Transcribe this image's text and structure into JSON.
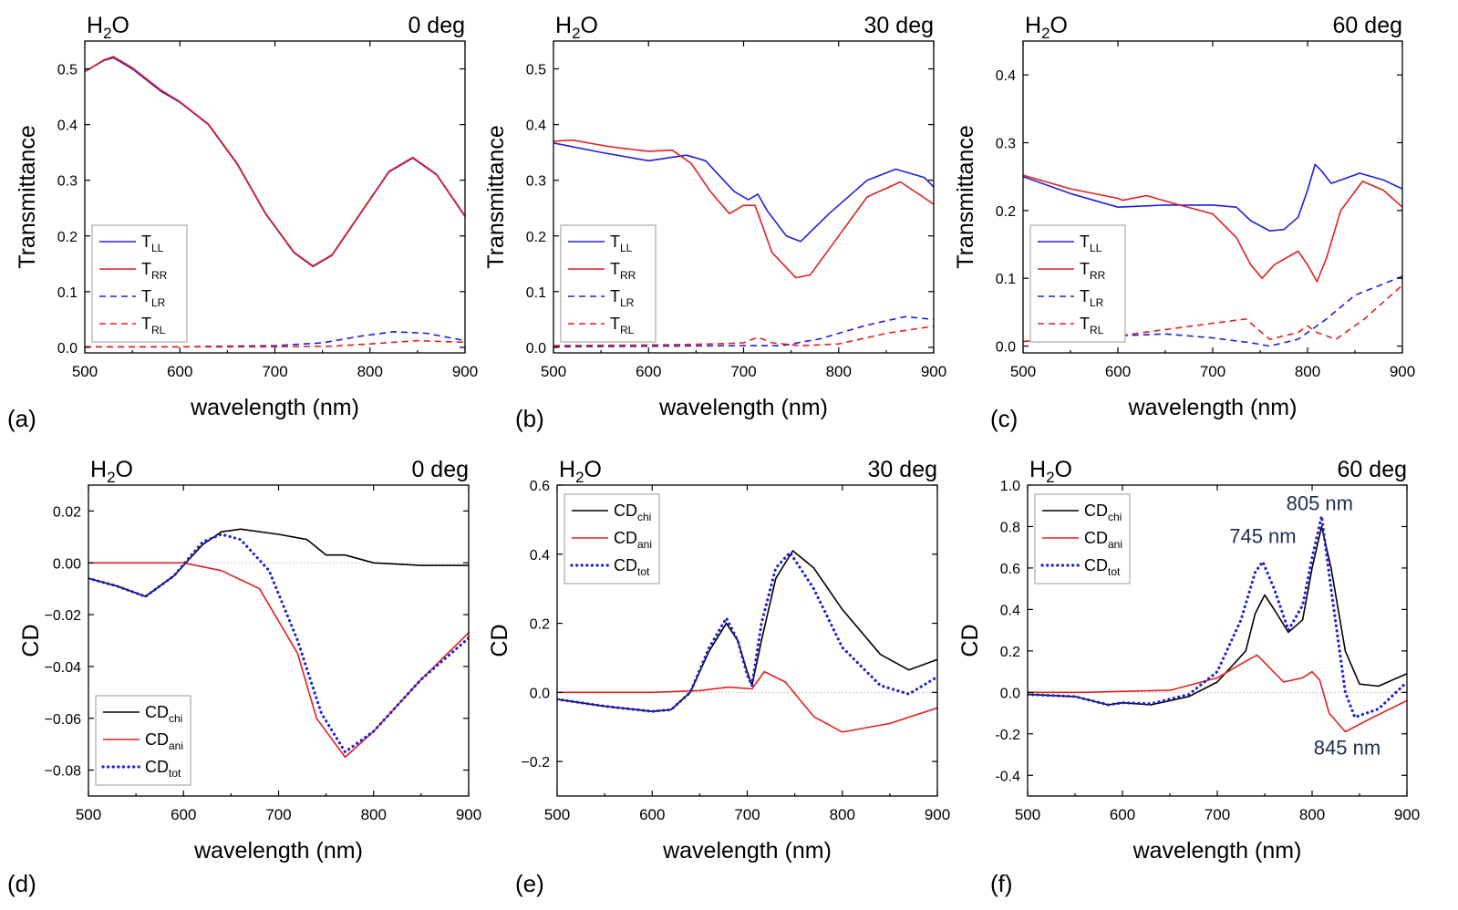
{
  "chart_data": [
    {
      "type": "line",
      "panel": "(a)",
      "title_left": "H2O",
      "title_right": "0 deg",
      "xlabel": "wavelength (nm)",
      "ylabel": "Transmittance",
      "xlim": [
        500,
        900
      ],
      "ylim": [
        -0.01,
        0.55
      ],
      "xticks": [
        500,
        600,
        700,
        800,
        900
      ],
      "yticks": [
        0.0,
        0.1,
        0.2,
        0.3,
        0.4,
        0.5
      ],
      "ytick_labels": [
        "0.0",
        "0.1",
        "0.2",
        "0.3",
        "0.4",
        "0.5"
      ],
      "legend_pos": "bottom-left",
      "series": [
        {
          "name": "LL",
          "label_main": "T",
          "label_sub": "LL",
          "color": "#1f1fd6",
          "dash": "solid",
          "x": [
            500,
            520,
            530,
            550,
            580,
            600,
            630,
            660,
            690,
            720,
            740,
            760,
            790,
            820,
            845,
            870,
            900
          ],
          "y": [
            0.495,
            0.515,
            0.52,
            0.5,
            0.46,
            0.44,
            0.4,
            0.33,
            0.24,
            0.17,
            0.145,
            0.165,
            0.24,
            0.315,
            0.34,
            0.31,
            0.235
          ]
        },
        {
          "name": "RR",
          "label_main": "T",
          "label_sub": "RR",
          "color": "#e02020",
          "dash": "solid",
          "x": [
            500,
            520,
            530,
            550,
            580,
            600,
            630,
            660,
            690,
            720,
            740,
            760,
            790,
            820,
            845,
            870,
            900
          ],
          "y": [
            0.495,
            0.516,
            0.522,
            0.502,
            0.462,
            0.441,
            0.401,
            0.331,
            0.241,
            0.171,
            0.146,
            0.166,
            0.241,
            0.316,
            0.341,
            0.311,
            0.236
          ]
        },
        {
          "name": "LR",
          "label_main": "T",
          "label_sub": "LR",
          "color": "#1f1fd6",
          "dash": "dashed",
          "x": [
            500,
            600,
            700,
            750,
            790,
            825,
            860,
            900
          ],
          "y": [
            0.001,
            0.001,
            0.003,
            0.008,
            0.02,
            0.028,
            0.025,
            0.012
          ]
        },
        {
          "name": "RL",
          "label_main": "T",
          "label_sub": "RL",
          "color": "#e02020",
          "dash": "dashed",
          "x": [
            500,
            600,
            700,
            760,
            800,
            850,
            900
          ],
          "y": [
            0.001,
            0.001,
            0.001,
            0.002,
            0.006,
            0.012,
            0.009
          ]
        }
      ]
    },
    {
      "type": "line",
      "panel": "(b)",
      "title_left": "H2O",
      "title_right": "30 deg",
      "xlabel": "wavelength (nm)",
      "ylabel": "Transmittance",
      "xlim": [
        500,
        900
      ],
      "ylim": [
        -0.01,
        0.55
      ],
      "xticks": [
        500,
        600,
        700,
        800,
        900
      ],
      "yticks": [
        0.0,
        0.1,
        0.2,
        0.3,
        0.4,
        0.5
      ],
      "ytick_labels": [
        "0.0",
        "0.1",
        "0.2",
        "0.3",
        "0.4",
        "0.5"
      ],
      "legend_pos": "bottom-left",
      "series": [
        {
          "name": "LL",
          "label_main": "T",
          "label_sub": "LL",
          "color": "#1f1fd6",
          "dash": "solid",
          "x": [
            500,
            550,
            600,
            640,
            660,
            690,
            705,
            715,
            725,
            745,
            760,
            790,
            830,
            860,
            890,
            900
          ],
          "y": [
            0.367,
            0.35,
            0.335,
            0.345,
            0.335,
            0.28,
            0.265,
            0.275,
            0.245,
            0.2,
            0.19,
            0.24,
            0.3,
            0.32,
            0.305,
            0.288
          ]
        },
        {
          "name": "RR",
          "label_main": "T",
          "label_sub": "RR",
          "color": "#e02020",
          "dash": "solid",
          "x": [
            500,
            520,
            560,
            600,
            625,
            645,
            665,
            685,
            700,
            712,
            730,
            755,
            770,
            800,
            830,
            865,
            900
          ],
          "y": [
            0.37,
            0.372,
            0.36,
            0.352,
            0.354,
            0.33,
            0.28,
            0.24,
            0.255,
            0.255,
            0.17,
            0.125,
            0.13,
            0.2,
            0.27,
            0.297,
            0.257
          ]
        },
        {
          "name": "LR",
          "label_main": "T",
          "label_sub": "LR",
          "color": "#1f1fd6",
          "dash": "dashed",
          "x": [
            500,
            600,
            700,
            740,
            780,
            830,
            870,
            900
          ],
          "y": [
            0.001,
            0.002,
            0.003,
            0.003,
            0.015,
            0.04,
            0.055,
            0.05
          ]
        },
        {
          "name": "RL",
          "label_main": "T",
          "label_sub": "RL",
          "color": "#e02020",
          "dash": "dashed",
          "x": [
            500,
            600,
            670,
            700,
            715,
            730,
            760,
            800,
            850,
            900
          ],
          "y": [
            0.003,
            0.004,
            0.006,
            0.008,
            0.018,
            0.008,
            0.003,
            0.006,
            0.025,
            0.038
          ]
        }
      ]
    },
    {
      "type": "line",
      "panel": "(c)",
      "title_left": "H2O",
      "title_right": "60 deg",
      "xlabel": "wavelength (nm)",
      "ylabel": "Transmittance",
      "xlim": [
        500,
        900
      ],
      "ylim": [
        -0.01,
        0.45
      ],
      "xticks": [
        500,
        600,
        700,
        800,
        900
      ],
      "yticks": [
        0.0,
        0.1,
        0.2,
        0.3,
        0.4
      ],
      "ytick_labels": [
        "0.0",
        "0.1",
        "0.2",
        "0.3",
        "0.4"
      ],
      "legend_pos": "bottom-left",
      "series": [
        {
          "name": "LL",
          "label_main": "T",
          "label_sub": "LL",
          "color": "#1f1fd6",
          "dash": "solid",
          "x": [
            500,
            550,
            600,
            650,
            700,
            725,
            740,
            760,
            775,
            790,
            800,
            808,
            815,
            825,
            855,
            880,
            900
          ],
          "y": [
            0.25,
            0.225,
            0.205,
            0.208,
            0.208,
            0.205,
            0.185,
            0.17,
            0.172,
            0.19,
            0.23,
            0.268,
            0.258,
            0.24,
            0.255,
            0.245,
            0.232
          ]
        },
        {
          "name": "RR",
          "label_main": "T",
          "label_sub": "RR",
          "color": "#e02020",
          "dash": "solid",
          "x": [
            500,
            550,
            600,
            605,
            630,
            660,
            700,
            725,
            740,
            752,
            765,
            790,
            800,
            810,
            820,
            835,
            858,
            880,
            900
          ],
          "y": [
            0.252,
            0.232,
            0.218,
            0.215,
            0.222,
            0.21,
            0.195,
            0.16,
            0.12,
            0.1,
            0.12,
            0.14,
            0.12,
            0.095,
            0.13,
            0.2,
            0.243,
            0.23,
            0.205
          ]
        },
        {
          "name": "LR",
          "label_main": "T",
          "label_sub": "LR",
          "color": "#1f1fd6",
          "dash": "dashed",
          "x": [
            500,
            600,
            650,
            700,
            740,
            760,
            790,
            820,
            850,
            900
          ],
          "y": [
            0.007,
            0.015,
            0.018,
            0.012,
            0.005,
            0.0,
            0.01,
            0.04,
            0.075,
            0.103
          ]
        },
        {
          "name": "RL",
          "label_main": "T",
          "label_sub": "RL",
          "color": "#e02020",
          "dash": "dashed",
          "x": [
            500,
            600,
            680,
            735,
            760,
            790,
            800,
            810,
            830,
            860,
            900
          ],
          "y": [
            0.007,
            0.015,
            0.03,
            0.04,
            0.01,
            0.02,
            0.03,
            0.02,
            0.01,
            0.04,
            0.09
          ]
        }
      ]
    },
    {
      "type": "line",
      "panel": "(d)",
      "title_left": "H2O",
      "title_right": "0 deg",
      "xlabel": "wavelength (nm)",
      "ylabel": "CD",
      "xlim": [
        500,
        900
      ],
      "ylim": [
        -0.09,
        0.03
      ],
      "xticks": [
        500,
        600,
        700,
        800,
        900
      ],
      "yticks": [
        0.02,
        0.0,
        -0.02,
        -0.04,
        -0.06,
        -0.08
      ],
      "ytick_labels": [
        "0.02",
        "0.00",
        "−0.02",
        "−0.04",
        "−0.06",
        "−0.08"
      ],
      "legend_pos": "bottom-left",
      "zero_line": true,
      "series": [
        {
          "name": "chi",
          "label_main": "CD",
          "label_sub": "chi",
          "color": "#000000",
          "dash": "solid",
          "x": [
            500,
            530,
            560,
            590,
            620,
            640,
            660,
            700,
            730,
            750,
            770,
            800,
            850,
            900
          ],
          "y": [
            -0.006,
            -0.009,
            -0.013,
            -0.005,
            0.007,
            0.012,
            0.013,
            0.011,
            0.009,
            0.003,
            0.003,
            0.0,
            -0.001,
            -0.001
          ]
        },
        {
          "name": "ani",
          "label_main": "CD",
          "label_sub": "ani",
          "color": "#e02020",
          "dash": "solid",
          "x": [
            500,
            560,
            600,
            640,
            680,
            720,
            740,
            770,
            800,
            850,
            900
          ],
          "y": [
            0.0,
            0.0,
            0.0,
            -0.003,
            -0.01,
            -0.035,
            -0.06,
            -0.075,
            -0.065,
            -0.045,
            -0.027
          ]
        },
        {
          "name": "tot",
          "label_main": "CD",
          "label_sub": "tot",
          "color": "#1f1fd6",
          "dash": "dotted",
          "x": [
            500,
            530,
            560,
            590,
            620,
            640,
            660,
            690,
            720,
            745,
            770,
            800,
            850,
            900
          ],
          "y": [
            -0.006,
            -0.009,
            -0.013,
            -0.005,
            0.008,
            0.011,
            0.009,
            -0.003,
            -0.03,
            -0.058,
            -0.073,
            -0.065,
            -0.045,
            -0.029
          ]
        }
      ]
    },
    {
      "type": "line",
      "panel": "(e)",
      "title_left": "H2O",
      "title_right": "30 deg",
      "xlabel": "wavelength (nm)",
      "ylabel": "CD",
      "xlim": [
        500,
        900
      ],
      "ylim": [
        -0.3,
        0.6
      ],
      "xticks": [
        500,
        600,
        700,
        800,
        900
      ],
      "yticks": [
        -0.2,
        0.0,
        0.2,
        0.4,
        0.6
      ],
      "ytick_labels": [
        "−0.2",
        "0.0",
        "0.2",
        "0.4",
        "0.6"
      ],
      "legend_pos": "top-left",
      "zero_line": true,
      "series": [
        {
          "name": "chi",
          "label_main": "CD",
          "label_sub": "chi",
          "color": "#000000",
          "dash": "solid",
          "x": [
            500,
            550,
            600,
            620,
            640,
            660,
            678,
            690,
            700,
            705,
            715,
            730,
            748,
            770,
            800,
            840,
            870,
            900
          ],
          "y": [
            -0.02,
            -0.04,
            -0.055,
            -0.05,
            0.0,
            0.12,
            0.2,
            0.15,
            0.06,
            0.02,
            0.15,
            0.33,
            0.41,
            0.36,
            0.24,
            0.11,
            0.065,
            0.095
          ]
        },
        {
          "name": "ani",
          "label_main": "CD",
          "label_sub": "ani",
          "color": "#e02020",
          "dash": "solid",
          "x": [
            500,
            600,
            650,
            680,
            705,
            718,
            740,
            770,
            800,
            850,
            900
          ],
          "y": [
            0.0,
            0.0,
            0.005,
            0.015,
            0.01,
            0.06,
            0.03,
            -0.07,
            -0.115,
            -0.09,
            -0.045
          ]
        },
        {
          "name": "tot",
          "label_main": "CD",
          "label_sub": "tot",
          "color": "#1f1fd6",
          "dash": "dotted",
          "x": [
            500,
            550,
            600,
            620,
            640,
            660,
            678,
            690,
            700,
            705,
            715,
            730,
            745,
            770,
            800,
            840,
            870,
            900
          ],
          "y": [
            -0.02,
            -0.04,
            -0.055,
            -0.05,
            0.0,
            0.13,
            0.215,
            0.15,
            0.05,
            0.02,
            0.2,
            0.36,
            0.405,
            0.3,
            0.13,
            0.02,
            -0.005,
            0.045
          ]
        }
      ]
    },
    {
      "type": "line",
      "panel": "(f)",
      "title_left": "H2O",
      "title_right": "60 deg",
      "xlabel": "wavelength (nm)",
      "ylabel": "CD",
      "xlim": [
        500,
        900
      ],
      "ylim": [
        -0.5,
        1.0
      ],
      "xticks": [
        500,
        600,
        700,
        800,
        900
      ],
      "yticks": [
        -0.4,
        -0.2,
        0.0,
        0.2,
        0.4,
        0.6,
        0.8,
        1.0
      ],
      "ytick_labels": [
        "-0.4",
        "-0.2",
        "0.0",
        "0.2",
        "0.4",
        "0.6",
        "0.8",
        "1.0"
      ],
      "legend_pos": "top-left",
      "zero_line": true,
      "annotations": [
        {
          "text": "745 nm",
          "x": 748,
          "y": 0.72
        },
        {
          "text": "805 nm",
          "x": 808,
          "y": 0.88
        },
        {
          "text": "845 nm",
          "x": 837,
          "y": -0.3
        }
      ],
      "series": [
        {
          "name": "chi",
          "label_main": "CD",
          "label_sub": "chi",
          "color": "#000000",
          "dash": "solid",
          "x": [
            500,
            550,
            585,
            600,
            630,
            670,
            700,
            730,
            740,
            750,
            760,
            775,
            790,
            800,
            810,
            820,
            835,
            850,
            870,
            900
          ],
          "y": [
            -0.01,
            -0.02,
            -0.06,
            -0.05,
            -0.06,
            -0.02,
            0.05,
            0.2,
            0.38,
            0.47,
            0.4,
            0.29,
            0.35,
            0.6,
            0.8,
            0.6,
            0.2,
            0.04,
            0.03,
            0.09
          ]
        },
        {
          "name": "ani",
          "label_main": "CD",
          "label_sub": "ani",
          "color": "#e02020",
          "dash": "solid",
          "x": [
            500,
            560,
            600,
            650,
            700,
            730,
            742,
            755,
            770,
            790,
            800,
            808,
            818,
            835,
            860,
            900
          ],
          "y": [
            0.0,
            0.0,
            0.005,
            0.01,
            0.07,
            0.15,
            0.18,
            0.12,
            0.05,
            0.07,
            0.1,
            0.06,
            -0.1,
            -0.19,
            -0.13,
            -0.04
          ]
        },
        {
          "name": "tot",
          "label_main": "CD",
          "label_sub": "tot",
          "color": "#1f1fd6",
          "dash": "dotted",
          "x": [
            500,
            550,
            585,
            600,
            630,
            670,
            700,
            725,
            740,
            748,
            760,
            775,
            790,
            800,
            810,
            820,
            835,
            845,
            870,
            900
          ],
          "y": [
            -0.01,
            -0.02,
            -0.06,
            -0.05,
            -0.055,
            -0.01,
            0.1,
            0.35,
            0.58,
            0.63,
            0.5,
            0.3,
            0.42,
            0.65,
            0.85,
            0.5,
            0.0,
            -0.12,
            -0.08,
            0.05
          ]
        }
      ]
    }
  ]
}
